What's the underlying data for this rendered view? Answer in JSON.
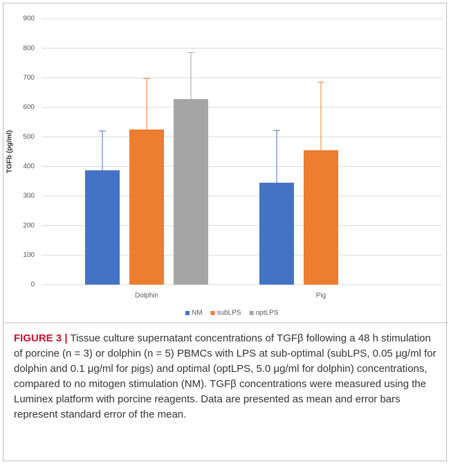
{
  "chart_data": {
    "type": "bar",
    "ylabel": "TGFb (pg/ml)",
    "categories": [
      "Dolphin",
      "Pig"
    ],
    "series": [
      {
        "name": "NM",
        "color": "#4472c4",
        "values": [
          387,
          345
        ],
        "errors": [
          133,
          177
        ]
      },
      {
        "name": "subLPS",
        "color": "#ed7d31",
        "values": [
          525,
          455
        ],
        "errors": [
          173,
          230
        ]
      },
      {
        "name": "optLPS",
        "color": "#a5a5a5",
        "values": [
          628,
          null
        ],
        "errors": [
          158,
          null
        ]
      }
    ],
    "ylim": [
      0,
      900
    ],
    "yticks": [
      0,
      100,
      200,
      300,
      400,
      500,
      600,
      700,
      800,
      900
    ],
    "grid": true,
    "legend": "bottom"
  },
  "caption": {
    "label": "FIGURE 3 |",
    "text": "Tissue culture supernatant concentrations of TGFβ following a 48 h stimulation of porcine (n = 3) or dolphin (n = 5) PBMCs with LPS at sub-optimal (subLPS, 0.05 μg/ml for dolphin and 0.1 μg/ml for pigs) and optimal (optLPS, 5.0 μg/ml for dolphin) concentrations, compared to no mitogen stimulation (NM). TGFβ concentrations were measured using the Luminex platform with porcine reagents. Data are presented as mean and error bars represent standard error of the mean."
  }
}
